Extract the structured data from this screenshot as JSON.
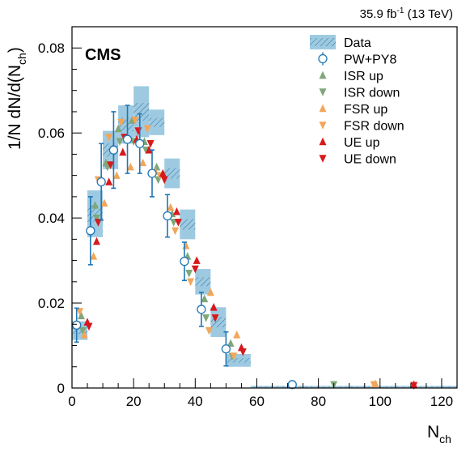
{
  "chart_data": {
    "type": "scatter",
    "title": "",
    "header_right": "35.9 fb$-1$ (13 TeV)",
    "header_right_main": "35.9 fb",
    "header_right_sup": "-1",
    "header_right_tail": " (13 TeV)",
    "experiment_label": "CMS",
    "xlabel_main": "N",
    "xlabel_sub": "ch",
    "ylabel_main": "1/N dN/d(N",
    "ylabel_sub": "ch",
    "ylabel_close": ")",
    "xlim": [
      0,
      125
    ],
    "ylim": [
      0,
      0.085
    ],
    "x_ticks": [
      0,
      20,
      40,
      60,
      80,
      100,
      120
    ],
    "x_tick_labels": [
      "0",
      "20",
      "40",
      "60",
      "80",
      "100",
      "120"
    ],
    "y_ticks": [
      0,
      0.02,
      0.04,
      0.06,
      0.08
    ],
    "y_tick_labels": [
      "0",
      "0.02",
      "0.04",
      "0.06",
      "0.08"
    ],
    "legend_position": "top-right",
    "colors": {
      "data_band": "#9ecae1",
      "data_hatch": "#2b6f9e",
      "pw_py8": "#2176b5",
      "isr": "#7fa77a",
      "fsr": "#f2a65a",
      "ue": "#d7191c"
    },
    "data_bins": [
      {
        "xlo": 0,
        "xhi": 5,
        "y": 0.0135,
        "band": 0.0022
      },
      {
        "xlo": 5,
        "xhi": 10,
        "y": 0.041,
        "band": 0.0055
      },
      {
        "xlo": 10,
        "xhi": 15,
        "y": 0.056,
        "band": 0.0045
      },
      {
        "xlo": 15,
        "xhi": 20,
        "y": 0.062,
        "band": 0.0045
      },
      {
        "xlo": 20,
        "xhi": 25,
        "y": 0.065,
        "band": 0.006
      },
      {
        "xlo": 25,
        "xhi": 30,
        "y": 0.0625,
        "band": 0.003
      },
      {
        "xlo": 30,
        "xhi": 35,
        "y": 0.0505,
        "band": 0.0035
      },
      {
        "xlo": 35,
        "xhi": 40,
        "y": 0.0385,
        "band": 0.0035
      },
      {
        "xlo": 40,
        "xhi": 45,
        "y": 0.025,
        "band": 0.003
      },
      {
        "xlo": 45,
        "xhi": 50,
        "y": 0.0155,
        "band": 0.0035
      },
      {
        "xlo": 50,
        "xhi": 58,
        "y": 0.0065,
        "band": 0.0015
      },
      {
        "xlo": 58,
        "xhi": 125,
        "y": 0.0003,
        "band": 0.0002
      }
    ],
    "series": [
      {
        "name": "Data",
        "marker": "band"
      },
      {
        "name": "PW+PY8",
        "marker": "open-circle",
        "x": [
          1.5,
          6,
          9.5,
          13.5,
          18,
          22,
          26,
          31,
          36.5,
          42,
          50,
          71.5
        ],
        "y": [
          0.0148,
          0.037,
          0.0485,
          0.056,
          0.0585,
          0.0575,
          0.0505,
          0.0405,
          0.0298,
          0.0185,
          0.0092,
          0.0008
        ],
        "err": [
          0.004,
          0.008,
          0.009,
          0.009,
          0.008,
          0.007,
          0.0055,
          0.005,
          0.0045,
          0.004,
          0.004,
          0
        ]
      },
      {
        "name": "ISR up",
        "marker": "triangle-up",
        "x": [
          3,
          7.5,
          11,
          15,
          19.5,
          23.5,
          27.5,
          32.5,
          37.5,
          43,
          51.5
        ],
        "y": [
          0.017,
          0.043,
          0.053,
          0.061,
          0.063,
          0.058,
          0.052,
          0.041,
          0.031,
          0.021,
          0.0105
        ]
      },
      {
        "name": "ISR down",
        "marker": "triangle-down",
        "x": [
          3.5,
          8,
          11.5,
          15.5,
          20,
          24,
          28,
          33,
          38,
          43.5,
          52,
          85
        ],
        "y": [
          0.0135,
          0.04,
          0.052,
          0.058,
          0.058,
          0.056,
          0.049,
          0.039,
          0.027,
          0.0165,
          0.0075,
          0.0008
        ]
      },
      {
        "name": "FSR up",
        "marker": "triangle-up",
        "x": [
          4,
          7,
          10.5,
          14.5,
          19,
          23,
          27,
          32,
          37,
          45,
          53.5,
          98.5
        ],
        "y": [
          0.0125,
          0.031,
          0.0435,
          0.05,
          0.052,
          0.053,
          0.051,
          0.0425,
          0.0335,
          0.0225,
          0.0125,
          0.001
        ]
      },
      {
        "name": "FSR down",
        "marker": "triangle-down",
        "x": [
          2.5,
          8.5,
          12,
          16,
          20.5,
          24.5,
          28.5,
          33.5,
          38.5,
          44.5,
          52.5,
          98
        ],
        "y": [
          0.018,
          0.049,
          0.059,
          0.0625,
          0.063,
          0.061,
          0.05,
          0.037,
          0.025,
          0.0135,
          0.0075,
          0.0008
        ]
      },
      {
        "name": "UE up",
        "marker": "triangle-up",
        "x": [
          5,
          8,
          12,
          16.5,
          21,
          25,
          29.5,
          34,
          40.5,
          46,
          55,
          111
        ],
        "y": [
          0.0155,
          0.0345,
          0.0485,
          0.0555,
          0.0585,
          0.056,
          0.0505,
          0.0415,
          0.03,
          0.019,
          0.0095,
          0.0008
        ]
      },
      {
        "name": "UE down",
        "marker": "triangle-down",
        "x": [
          5.5,
          8.5,
          12.5,
          17,
          21.5,
          25.5,
          30,
          34.5,
          40,
          46.5,
          55.5,
          111
        ],
        "y": [
          0.0145,
          0.039,
          0.0525,
          0.059,
          0.0605,
          0.0575,
          0.049,
          0.039,
          0.028,
          0.0165,
          0.0085,
          0.0006
        ]
      }
    ]
  }
}
